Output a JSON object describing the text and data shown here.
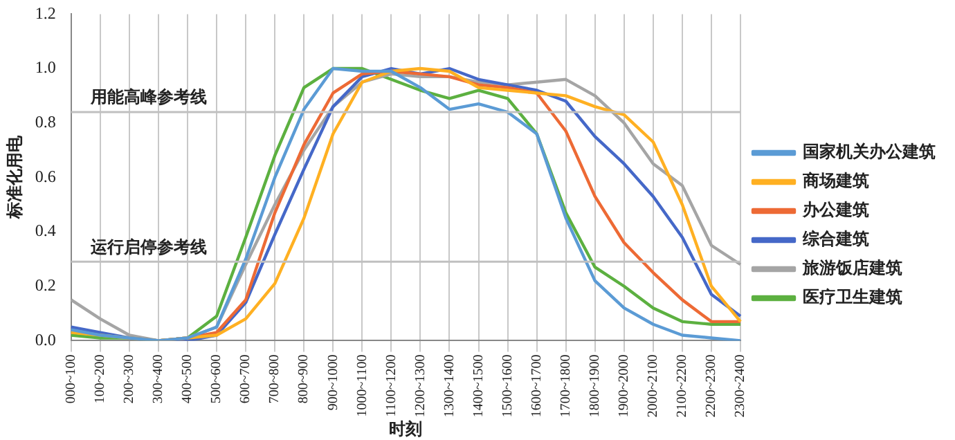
{
  "chart_data": {
    "type": "line",
    "xlabel": "时刻",
    "ylabel": "标准化用电",
    "categories": [
      "000~100",
      "100~200",
      "200~300",
      "300~400",
      "400~500",
      "500~600",
      "600~700",
      "700~800",
      "800~900",
      "900~1000",
      "1000~1100",
      "1100~1200",
      "1200~1300",
      "1300~1400",
      "1400~1500",
      "1500~1600",
      "1600~1700",
      "1700~1800",
      "1800~1900",
      "1900~2000",
      "2000~2100",
      "2100~2200",
      "2200~2300",
      "2300~2400"
    ],
    "series": [
      {
        "name": "国家机关办公建筑",
        "color": "#5b9bd5",
        "values": [
          0.04,
          0.02,
          0.01,
          0.0,
          0.01,
          0.05,
          0.3,
          0.6,
          0.85,
          1.0,
          0.99,
          0.99,
          0.93,
          0.85,
          0.87,
          0.84,
          0.76,
          0.45,
          0.22,
          0.12,
          0.06,
          0.02,
          0.01,
          0.0
        ]
      },
      {
        "name": "商场建筑",
        "color": "#ffb022",
        "values": [
          0.03,
          0.02,
          0.01,
          0.0,
          0.01,
          0.02,
          0.08,
          0.21,
          0.45,
          0.76,
          0.95,
          0.99,
          1.0,
          0.99,
          0.93,
          0.92,
          0.91,
          0.9,
          0.86,
          0.83,
          0.73,
          0.5,
          0.2,
          0.07
        ]
      },
      {
        "name": "办公建筑",
        "color": "#ed6a35",
        "values": [
          null,
          null,
          null,
          0.0,
          0.01,
          0.03,
          0.15,
          0.47,
          0.72,
          0.91,
          0.98,
          0.99,
          0.98,
          0.97,
          0.94,
          0.93,
          0.91,
          0.77,
          0.53,
          0.36,
          0.25,
          0.15,
          0.07,
          0.07
        ]
      },
      {
        "name": "综合建筑",
        "color": "#4568c8",
        "values": [
          0.05,
          0.03,
          0.01,
          0.0,
          0.0,
          0.02,
          0.14,
          0.39,
          0.63,
          0.86,
          0.97,
          1.0,
          0.98,
          1.0,
          0.96,
          0.94,
          0.92,
          0.88,
          0.75,
          0.65,
          0.53,
          0.38,
          0.17,
          0.09
        ]
      },
      {
        "name": "旅游饭店建筑",
        "color": "#a5a5a5",
        "values": [
          0.15,
          0.08,
          0.02,
          0.0,
          0.01,
          0.05,
          0.28,
          0.5,
          0.7,
          0.86,
          0.95,
          0.98,
          0.97,
          0.97,
          0.95,
          0.94,
          0.95,
          0.96,
          0.9,
          0.8,
          0.65,
          0.57,
          0.35,
          0.28
        ]
      },
      {
        "name": "医疗卫生建筑",
        "color": "#5cb040",
        "values": [
          0.02,
          0.01,
          0.01,
          0.0,
          0.01,
          0.09,
          0.38,
          0.68,
          0.93,
          1.0,
          1.0,
          0.96,
          0.92,
          0.89,
          0.92,
          0.89,
          0.76,
          0.47,
          0.27,
          0.2,
          0.12,
          0.07,
          0.06,
          0.06
        ]
      }
    ],
    "ylim": [
      0,
      1.2
    ],
    "yticks": [
      {
        "value": 0,
        "label": "0.0"
      },
      {
        "value": 0.2,
        "label": "0.2"
      },
      {
        "value": 0.4,
        "label": "0.4"
      },
      {
        "value": 0.6,
        "label": "0.6"
      },
      {
        "value": 0.8,
        "label": "0.8"
      },
      {
        "value": 1.0,
        "label": "1.0"
      },
      {
        "value": 1.2,
        "label": "1.2"
      }
    ],
    "ref_lines": [
      {
        "axis": "y",
        "value": 0.84,
        "label": "用能高峰参考线",
        "color": "#c0c0c0"
      },
      {
        "axis": "y",
        "value": 0.29,
        "label": "运行启停参考线",
        "color": "#c0c0c0"
      }
    ],
    "grid": "x",
    "legend": "right",
    "marker": "none",
    "line_style": "solid"
  }
}
